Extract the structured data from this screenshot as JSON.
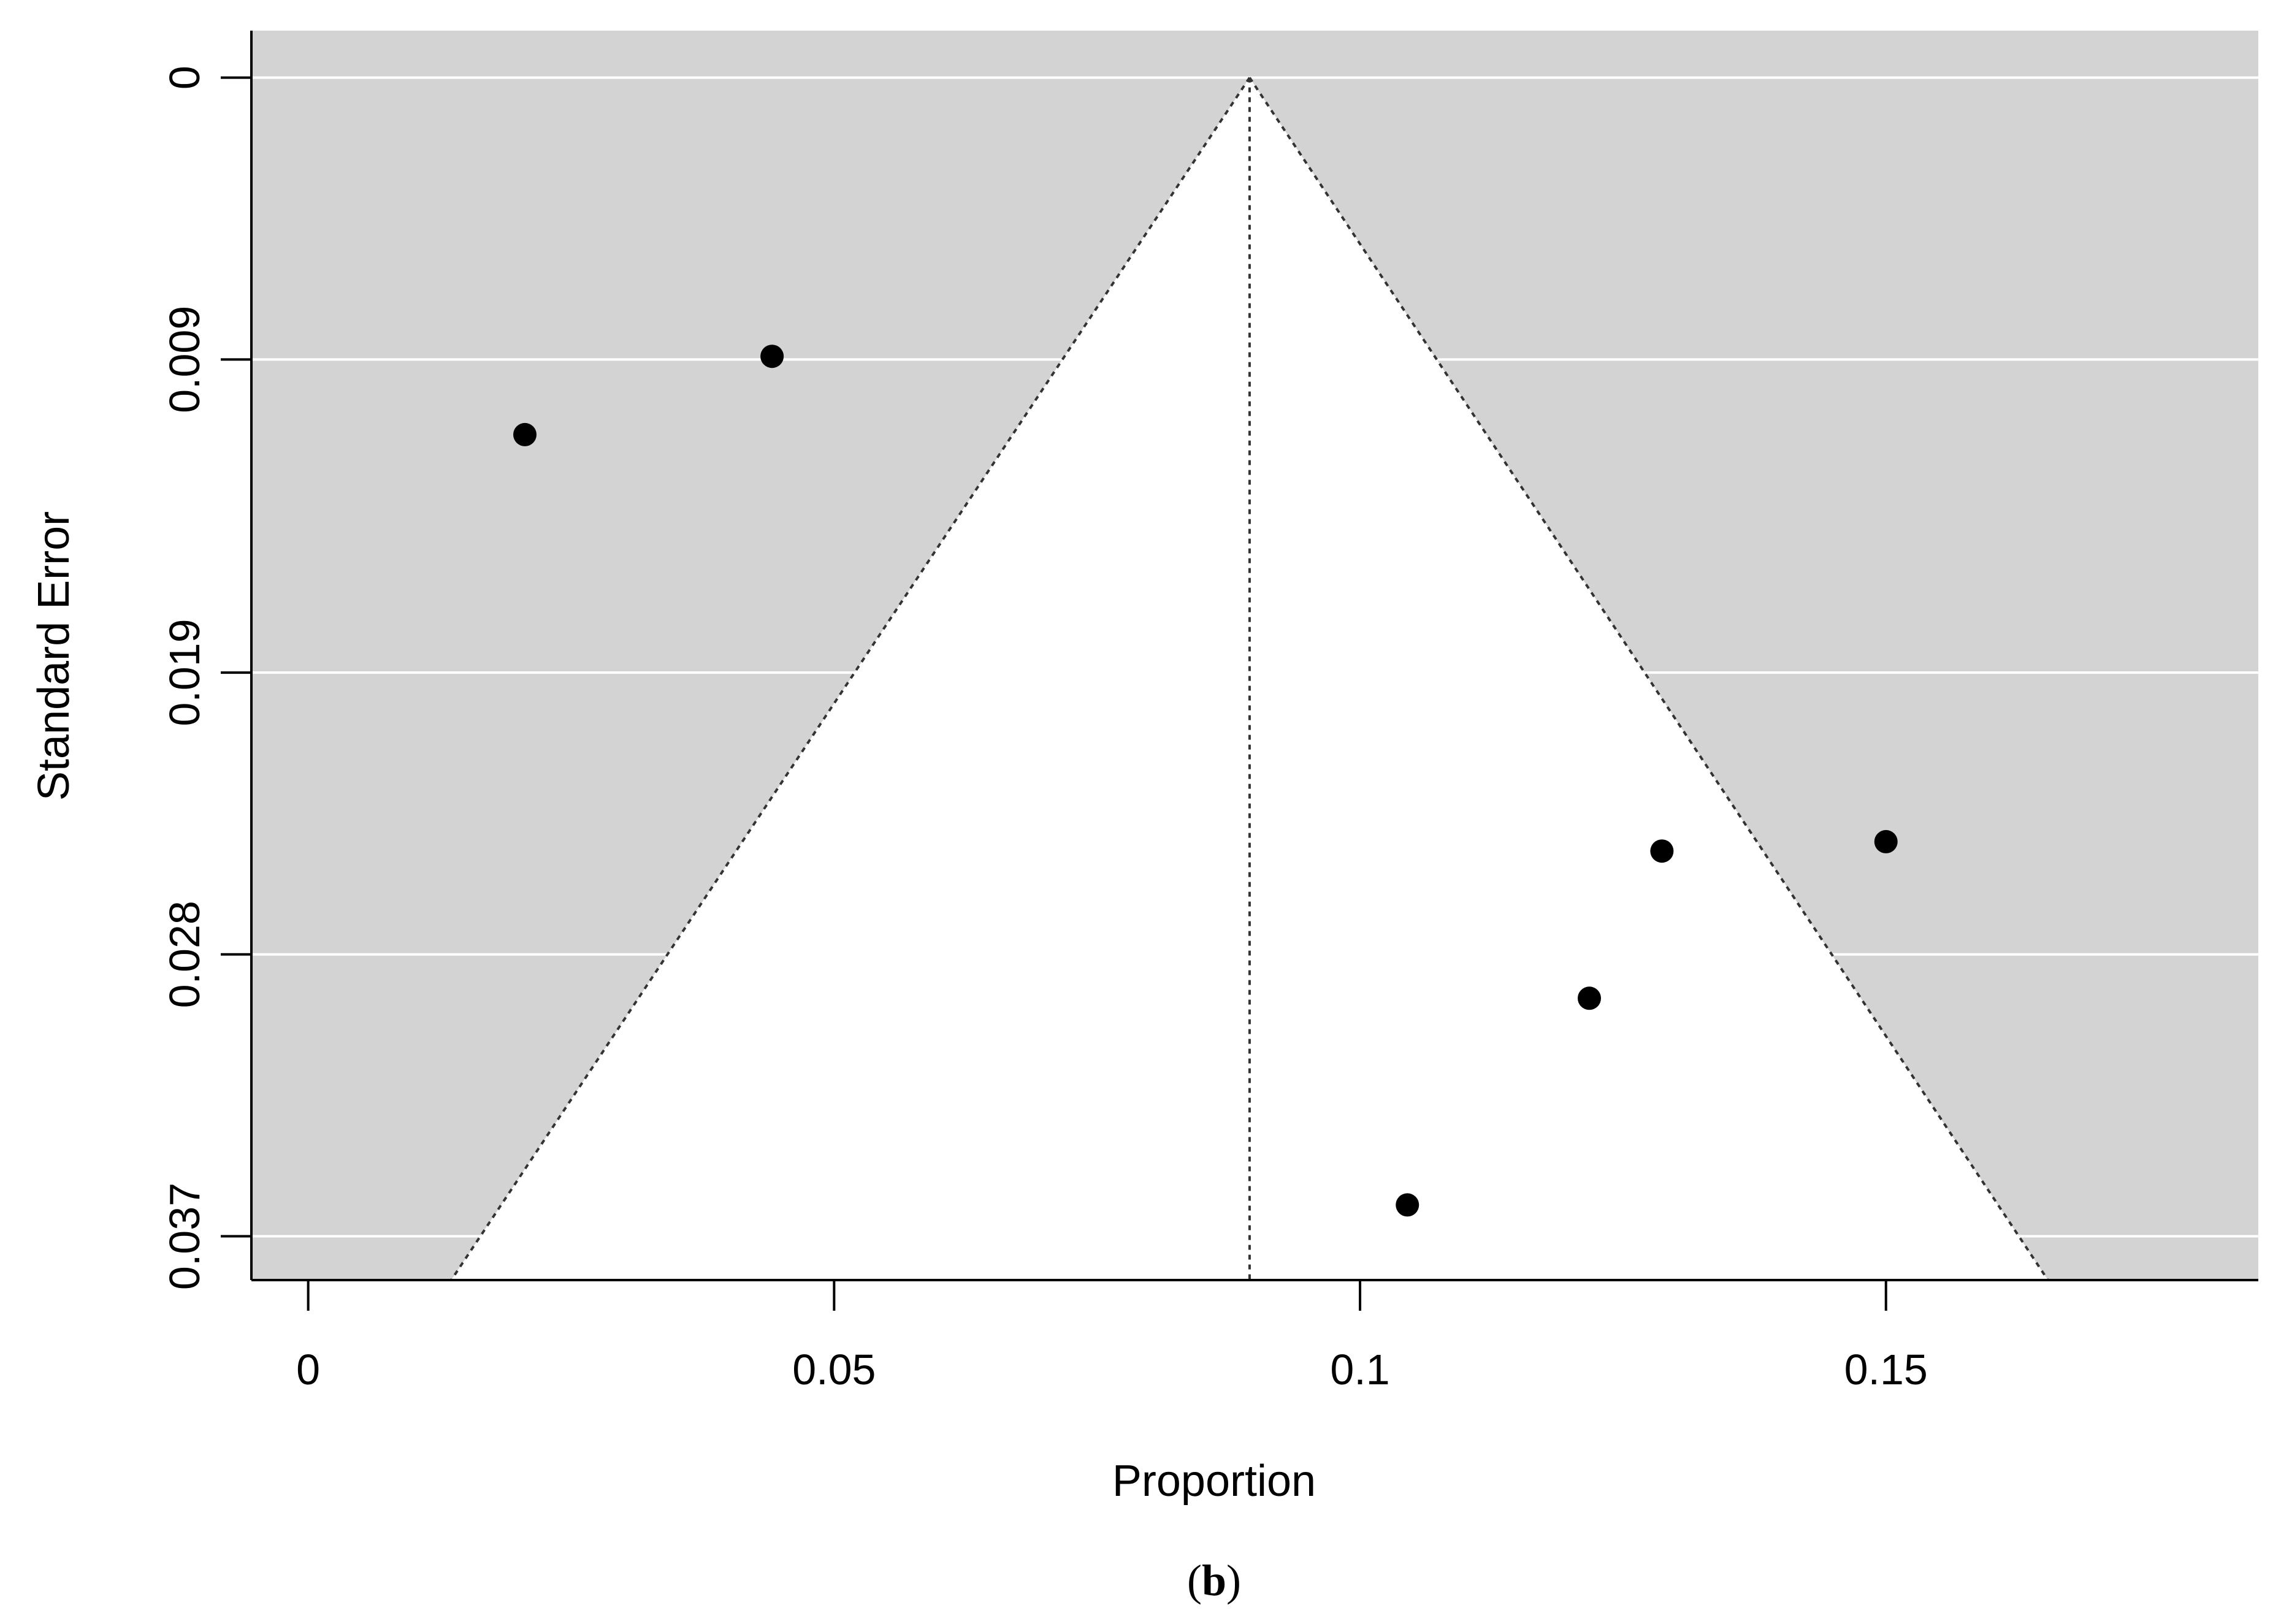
{
  "chart_data": {
    "type": "scatter",
    "subtype": "funnel",
    "title": "",
    "xlabel": "Proportion",
    "ylabel": "Standard Error",
    "xlim": [
      -0.0054,
      0.1854
    ],
    "ylim": [
      0.0384,
      -0.0015
    ],
    "y_reversed": true,
    "x_ticks": [
      0,
      0.05,
      0.1,
      0.15
    ],
    "x_tick_labels": [
      "0",
      "0.05",
      "0.1",
      "0.15"
    ],
    "y_ticks": [
      0,
      0.009,
      0.019,
      0.028,
      0.037
    ],
    "y_tick_labels": [
      "0",
      "0.009",
      "0.019",
      "0.028",
      "0.037"
    ],
    "grid": true,
    "background_color": "#d3d3d3",
    "funnel_fill_color": "#ffffff",
    "point_color": "#000000",
    "pooled_estimate": 0.0895,
    "funnel_apex": [
      0.0895,
      0
    ],
    "funnel_base_left": [
      0.0136,
      0.0384
    ],
    "funnel_base_right": [
      0.1654,
      0.0384
    ],
    "points": [
      {
        "x": 0.0206,
        "y": 0.0114
      },
      {
        "x": 0.0441,
        "y": 0.0089
      },
      {
        "x": 0.1287,
        "y": 0.0247
      },
      {
        "x": 0.15,
        "y": 0.0244
      },
      {
        "x": 0.1218,
        "y": 0.0294
      },
      {
        "x": 0.1045,
        "y": 0.036
      }
    ]
  },
  "caption": {
    "open": "(",
    "letter": "b",
    "close": ")"
  }
}
